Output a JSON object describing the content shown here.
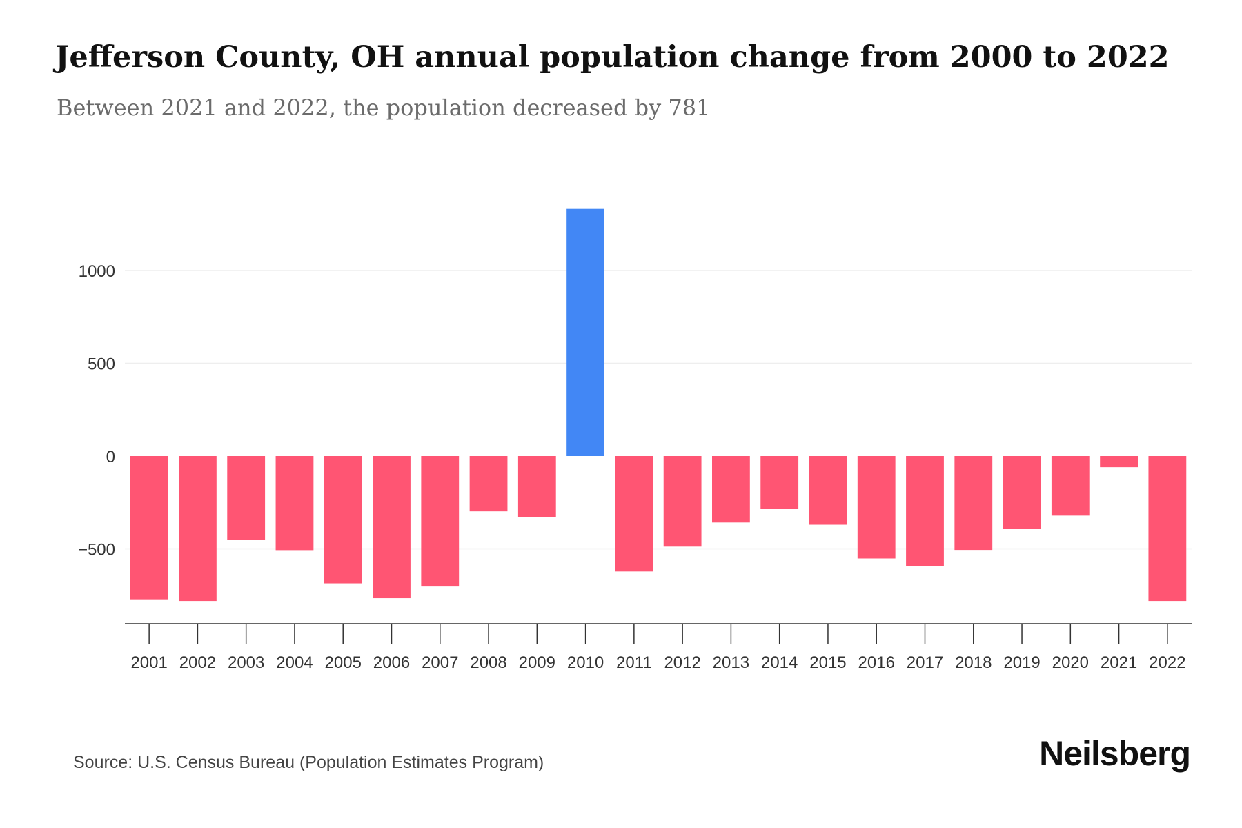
{
  "header": {
    "title": "Jefferson County, OH annual population change from 2000 to 2022",
    "subtitle": "Between 2021 and 2022, the population decreased by 781"
  },
  "footer": {
    "source": "Source: U.S. Census Bureau (Population Estimates Program)",
    "brand": "Neilsberg"
  },
  "colors": {
    "positive": "#4287f5",
    "negative": "#ff5573",
    "grid": "#eeeeee",
    "axis": "#333333"
  },
  "chart_data": {
    "type": "bar",
    "title": "Jefferson County, OH annual population change from 2000 to 2022",
    "xlabel": "",
    "ylabel": "",
    "categories": [
      "2001",
      "2002",
      "2003",
      "2004",
      "2005",
      "2006",
      "2007",
      "2008",
      "2009",
      "2010",
      "2011",
      "2012",
      "2013",
      "2014",
      "2015",
      "2016",
      "2017",
      "2018",
      "2019",
      "2020",
      "2021",
      "2022"
    ],
    "values": [
      -772,
      -781,
      -453,
      -507,
      -686,
      -766,
      -703,
      -298,
      -330,
      1332,
      -622,
      -488,
      -358,
      -283,
      -370,
      -552,
      -592,
      -506,
      -394,
      -321,
      -60,
      -781
    ],
    "yticks": [
      -500,
      0,
      500,
      1000
    ],
    "ytick_labels": [
      "−500",
      "0",
      "500",
      "1000"
    ],
    "ylim": [
      -900,
      1400
    ],
    "grid": true
  }
}
